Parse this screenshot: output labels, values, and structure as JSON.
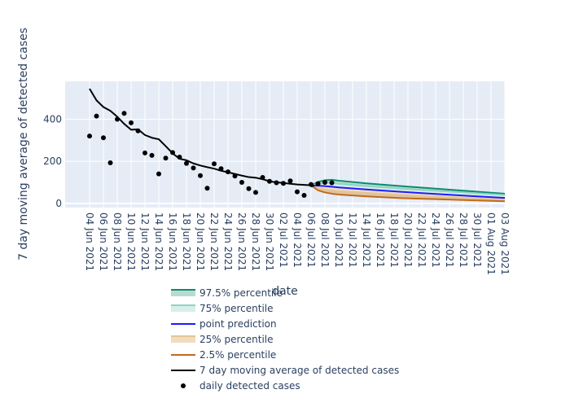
{
  "chart_data": {
    "type": "line",
    "xlabel": "date",
    "ylabel": "7 day moving average of detected cases",
    "ylim": [
      -20,
      580
    ],
    "yticks": [
      0,
      200,
      400
    ],
    "x_range": [
      "2021-06-04",
      "2021-08-03"
    ],
    "xticks": [
      "04 Jun 2021",
      "06 Jun 2021",
      "08 Jun 2021",
      "10 Jun 2021",
      "12 Jun 2021",
      "14 Jun 2021",
      "16 Jun 2021",
      "18 Jun 2021",
      "20 Jun 2021",
      "22 Jun 2021",
      "24 Jun 2021",
      "26 Jun 2021",
      "28 Jun 2021",
      "30 Jun 2021",
      "02 Jul 2021",
      "04 Jul 2021",
      "06 Jul 2021",
      "08 Jul 2021",
      "10 Jul 2021",
      "12 Jul 2021",
      "14 Jul 2021",
      "16 Jul 2021",
      "18 Jul 2021",
      "20 Jul 2021",
      "22 Jul 2021",
      "24 Jul 2021",
      "26 Jul 2021",
      "28 Jul 2021",
      "30 Jul 2021",
      "01 Aug 2021",
      "03 Aug 2021"
    ],
    "grid": true,
    "legend_position": "bottom",
    "daily_cases": {
      "name": "daily detected cases",
      "x": [
        "2021-06-04",
        "2021-06-05",
        "2021-06-06",
        "2021-06-07",
        "2021-06-08",
        "2021-06-09",
        "2021-06-10",
        "2021-06-11",
        "2021-06-12",
        "2021-06-13",
        "2021-06-14",
        "2021-06-15",
        "2021-06-16",
        "2021-06-17",
        "2021-06-18",
        "2021-06-19",
        "2021-06-20",
        "2021-06-21",
        "2021-06-22",
        "2021-06-23",
        "2021-06-24",
        "2021-06-25",
        "2021-06-26",
        "2021-06-27",
        "2021-06-28",
        "2021-06-29",
        "2021-06-30",
        "2021-07-01",
        "2021-07-02",
        "2021-07-03",
        "2021-07-04",
        "2021-07-05",
        "2021-07-06",
        "2021-07-07",
        "2021-07-08",
        "2021-07-09"
      ],
      "y": [
        320,
        415,
        312,
        193,
        400,
        428,
        383,
        345,
        240,
        228,
        140,
        215,
        242,
        220,
        190,
        168,
        132,
        72,
        188,
        165,
        150,
        130,
        100,
        70,
        52,
        123,
        105,
        98,
        95,
        107,
        55,
        38,
        90,
        93,
        100,
        98
      ]
    },
    "moving_average": {
      "name": "7 day moving average of detected cases",
      "x": [
        "2021-06-04",
        "2021-06-05",
        "2021-06-06",
        "2021-06-07",
        "2021-06-08",
        "2021-06-09",
        "2021-06-10",
        "2021-06-11",
        "2021-06-12",
        "2021-06-13",
        "2021-06-14",
        "2021-06-15",
        "2021-06-16",
        "2021-06-17",
        "2021-06-18",
        "2021-06-19",
        "2021-06-20",
        "2021-06-21",
        "2021-06-22",
        "2021-06-23",
        "2021-06-24",
        "2021-06-25",
        "2021-06-26",
        "2021-06-27",
        "2021-06-28",
        "2021-06-29",
        "2021-06-30",
        "2021-07-01",
        "2021-07-02",
        "2021-07-03",
        "2021-07-04",
        "2021-07-05",
        "2021-07-06"
      ],
      "y": [
        545,
        490,
        458,
        440,
        412,
        378,
        350,
        352,
        325,
        312,
        305,
        272,
        238,
        212,
        205,
        190,
        180,
        172,
        165,
        155,
        148,
        140,
        132,
        125,
        122,
        115,
        105,
        100,
        97,
        93,
        90,
        88,
        86
      ]
    },
    "forecast": {
      "x": [
        "2021-07-06",
        "2021-07-07",
        "2021-07-08",
        "2021-07-09",
        "2021-07-10",
        "2021-07-14",
        "2021-07-19",
        "2021-07-24",
        "2021-07-29",
        "2021-08-03"
      ],
      "p97_5": {
        "name": "97.5% percentile",
        "color": "#0e8a72",
        "y": [
          86,
          102,
          110,
          112,
          108,
          95,
          82,
          70,
          58,
          46
        ]
      },
      "p75": {
        "name": "75% percentile",
        "color": "#8fd3c3",
        "y": [
          86,
          94,
          98,
          97,
          93,
          82,
          70,
          60,
          50,
          40
        ]
      },
      "point": {
        "name": "point prediction",
        "color": "#1d1dff",
        "y": [
          86,
          84,
          82,
          79,
          76,
          66,
          55,
          45,
          35,
          26
        ]
      },
      "p25": {
        "name": "25% percentile",
        "color": "#e3c49a",
        "y": [
          86,
          72,
          66,
          62,
          58,
          50,
          40,
          32,
          25,
          18
        ]
      },
      "p2_5": {
        "name": "2.5% percentile",
        "color": "#c26a1e",
        "y": [
          86,
          62,
          52,
          46,
          42,
          33,
          25,
          20,
          15,
          10
        ]
      }
    },
    "colors": {
      "plot_bg": "#e5ecf6",
      "grid": "#ffffff",
      "moving_average": "#000000",
      "daily_cases": "#000000",
      "fill_outer": "#b7dccf",
      "fill_inner": "#d7efe9",
      "fill_lower_inner": "#f1dcc0",
      "fill_lower_outer": "#dfc39d",
      "dashed_overlay": "#000000"
    }
  }
}
